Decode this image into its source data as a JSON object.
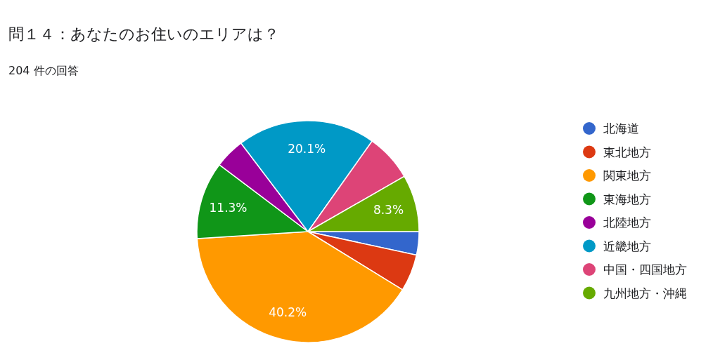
{
  "chart_data": {
    "type": "pie",
    "title": "問１４：あなたのお住いのエリアは？",
    "subtitle": "204 件の回答",
    "categories": [
      "北海道",
      "東北地方",
      "関東地方",
      "東海地方",
      "北陸地方",
      "近畿地方",
      "中国・四国地方",
      "九州地方・沖縄"
    ],
    "values": [
      3.4,
      5.4,
      40.2,
      11.3,
      4.4,
      20.1,
      6.9,
      8.3
    ],
    "colors": [
      "#3366cc",
      "#dc3912",
      "#ff9900",
      "#109618",
      "#990099",
      "#0099c6",
      "#dd4477",
      "#66aa00"
    ],
    "value_labels": [
      null,
      null,
      "40.2%",
      "11.3%",
      null,
      "20.1%",
      null,
      "8.3%"
    ],
    "legend": "right"
  }
}
